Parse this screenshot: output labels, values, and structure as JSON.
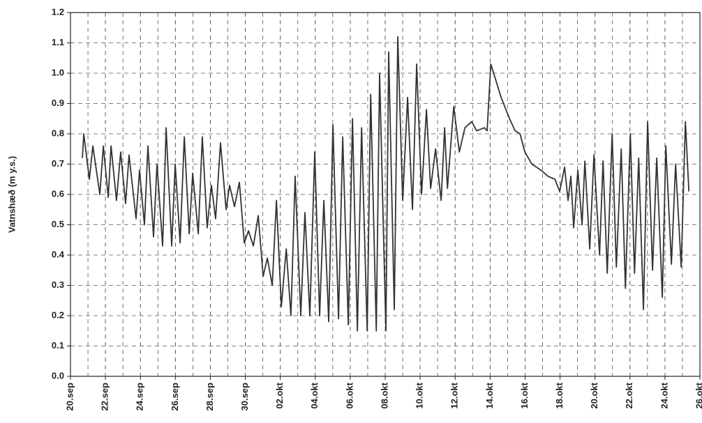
{
  "chart_data": {
    "type": "line",
    "ylabel": "Vatnshæð (m y.s.)",
    "xlim": [
      0,
      36
    ],
    "xticks": [
      {
        "value": 0,
        "label": "20.sep"
      },
      {
        "value": 2,
        "label": "22.sep"
      },
      {
        "value": 4,
        "label": "24.sep"
      },
      {
        "value": 6,
        "label": "26.sep"
      },
      {
        "value": 8,
        "label": "28.sep"
      },
      {
        "value": 10,
        "label": "30.sep"
      },
      {
        "value": 12,
        "label": "02.okt"
      },
      {
        "value": 14,
        "label": "04.okt"
      },
      {
        "value": 16,
        "label": "06.okt"
      },
      {
        "value": 18,
        "label": "08.okt"
      },
      {
        "value": 20,
        "label": "10.okt"
      },
      {
        "value": 22,
        "label": "12.okt"
      },
      {
        "value": 24,
        "label": "14.okt"
      },
      {
        "value": 26,
        "label": "16.okt"
      },
      {
        "value": 28,
        "label": "18.okt"
      },
      {
        "value": 30,
        "label": "20.okt"
      },
      {
        "value": 32,
        "label": "22.okt"
      },
      {
        "value": 34,
        "label": "24.okt"
      },
      {
        "value": 36,
        "label": "26.okt"
      }
    ],
    "ylim": [
      0,
      1.2
    ],
    "yticks": [
      {
        "value": 0,
        "label": "0.0"
      },
      0.1,
      0.2,
      0.3,
      0.4,
      0.5,
      0.6,
      0.7,
      0.8,
      0.9,
      {
        "value": 1,
        "label": "1.0"
      },
      1.1,
      1.2
    ],
    "grid": true,
    "series": [
      {
        "color": "#333333",
        "x": [
          0.68,
          0.76,
          1.08,
          1.28,
          1.68,
          1.88,
          2.16,
          2.32,
          2.63,
          2.87,
          3.15,
          3.35,
          3.75,
          3.95,
          4.23,
          4.43,
          4.75,
          4.95,
          5.27,
          5.47,
          5.79,
          5.99,
          6.27,
          6.51,
          6.79,
          6.99,
          7.31,
          7.54,
          7.82,
          8.06,
          8.3,
          8.58,
          8.9,
          9.1,
          9.38,
          9.66,
          9.94,
          10.18,
          10.46,
          10.74,
          11.02,
          11.26,
          11.54,
          11.78,
          12.06,
          12.34,
          12.61,
          12.85,
          13.17,
          13.41,
          13.69,
          13.97,
          14.25,
          14.49,
          14.77,
          15.01,
          15.33,
          15.57,
          15.89,
          16.13,
          16.41,
          16.65,
          16.97,
          17.17,
          17.49,
          17.68,
          18.04,
          18.2,
          18.52,
          18.72,
          19.0,
          19.28,
          19.56,
          19.8,
          20.08,
          20.36,
          20.6,
          20.88,
          21.2,
          21.4,
          21.56,
          21.92,
          22.24,
          22.56,
          22.95,
          23.23,
          23.67,
          23.83,
          24.04,
          24.31,
          24.63,
          25.11,
          25.43,
          25.71,
          25.99,
          26.39,
          26.91,
          27.31,
          27.71,
          27.98,
          28.26,
          28.46,
          28.62,
          28.78,
          29.02,
          29.26,
          29.42,
          29.7,
          29.94,
          30.26,
          30.46,
          30.7,
          30.98,
          31.22,
          31.5,
          31.74,
          32.02,
          32.26,
          32.5,
          32.77,
          33.01,
          33.29,
          33.53,
          33.85,
          34.05,
          34.37,
          34.61,
          34.93,
          35.17,
          35.37
        ],
        "values": [
          0.72,
          0.8,
          0.65,
          0.76,
          0.6,
          0.76,
          0.59,
          0.76,
          0.58,
          0.74,
          0.57,
          0.73,
          0.52,
          0.68,
          0.5,
          0.76,
          0.46,
          0.7,
          0.43,
          0.82,
          0.43,
          0.7,
          0.44,
          0.79,
          0.47,
          0.67,
          0.47,
          0.79,
          0.49,
          0.63,
          0.52,
          0.77,
          0.55,
          0.63,
          0.56,
          0.64,
          0.44,
          0.48,
          0.43,
          0.53,
          0.33,
          0.39,
          0.3,
          0.58,
          0.23,
          0.42,
          0.2,
          0.66,
          0.2,
          0.54,
          0.2,
          0.74,
          0.2,
          0.58,
          0.18,
          0.83,
          0.19,
          0.79,
          0.17,
          0.85,
          0.15,
          0.82,
          0.15,
          0.93,
          0.15,
          1.0,
          0.15,
          1.07,
          0.22,
          1.12,
          0.58,
          0.92,
          0.55,
          1.03,
          0.6,
          0.88,
          0.62,
          0.75,
          0.58,
          0.82,
          0.62,
          0.89,
          0.74,
          0.82,
          0.84,
          0.81,
          0.82,
          0.81,
          1.03,
          0.98,
          0.92,
          0.85,
          0.81,
          0.8,
          0.74,
          0.7,
          0.68,
          0.66,
          0.65,
          0.61,
          0.69,
          0.58,
          0.66,
          0.49,
          0.68,
          0.5,
          0.71,
          0.42,
          0.73,
          0.4,
          0.71,
          0.34,
          0.8,
          0.36,
          0.75,
          0.29,
          0.8,
          0.34,
          0.72,
          0.22,
          0.84,
          0.35,
          0.72,
          0.26,
          0.76,
          0.37,
          0.7,
          0.36,
          0.84,
          0.61
        ]
      }
    ]
  }
}
